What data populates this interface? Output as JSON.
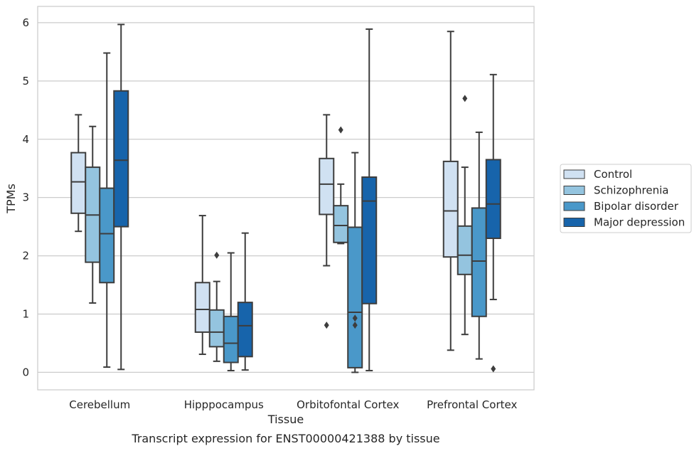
{
  "chart_data": {
    "type": "box",
    "title": "",
    "caption": "Transcript expression for ENST00000421388 by tissue",
    "xlabel": "Tissue",
    "ylabel": "TPMs",
    "ylim": [
      -0.3,
      6.28
    ],
    "yticks": [
      0,
      1,
      2,
      3,
      4,
      5,
      6
    ],
    "grid": "horizontal",
    "legend_position": "right",
    "categories": [
      "Cerebellum",
      "Hipppocampus",
      "Orbitofontal Cortex",
      "Prefrontal Cortex"
    ],
    "series": [
      {
        "name": "Control",
        "color": "#d0e1f2",
        "boxes": [
          {
            "whisker_low": 2.42,
            "q1": 2.73,
            "median": 3.27,
            "q3": 3.77,
            "whisker_high": 4.42,
            "outliers": []
          },
          {
            "whisker_low": 0.31,
            "q1": 0.69,
            "median": 1.08,
            "q3": 1.54,
            "whisker_high": 2.69,
            "outliers": []
          },
          {
            "whisker_low": 1.83,
            "q1": 2.71,
            "median": 3.23,
            "q3": 3.67,
            "whisker_high": 4.42,
            "outliers": [
              0.81
            ]
          },
          {
            "whisker_low": 0.38,
            "q1": 1.98,
            "median": 2.77,
            "q3": 3.62,
            "whisker_high": 5.85,
            "outliers": []
          }
        ]
      },
      {
        "name": "Schizophrenia",
        "color": "#94c4df",
        "boxes": [
          {
            "whisker_low": 1.19,
            "q1": 1.89,
            "median": 2.7,
            "q3": 3.52,
            "whisker_high": 4.22,
            "outliers": []
          },
          {
            "whisker_low": 0.19,
            "q1": 0.44,
            "median": 0.69,
            "q3": 1.07,
            "whisker_high": 1.56,
            "outliers": [
              2.01
            ]
          },
          {
            "whisker_low": 2.21,
            "q1": 2.23,
            "median": 2.52,
            "q3": 2.86,
            "whisker_high": 3.23,
            "outliers": [
              4.16
            ]
          },
          {
            "whisker_low": 0.65,
            "q1": 1.68,
            "median": 2.01,
            "q3": 2.51,
            "whisker_high": 3.52,
            "outliers": [
              4.7
            ]
          }
        ]
      },
      {
        "name": "Bipolar disorder",
        "color": "#4a98c9",
        "boxes": [
          {
            "whisker_low": 0.09,
            "q1": 1.54,
            "median": 2.38,
            "q3": 3.16,
            "whisker_high": 5.48,
            "outliers": []
          },
          {
            "whisker_low": 0.03,
            "q1": 0.17,
            "median": 0.5,
            "q3": 0.96,
            "whisker_high": 2.05,
            "outliers": []
          },
          {
            "whisker_low": 0.0,
            "q1": 0.08,
            "median": 1.03,
            "q3": 2.49,
            "whisker_high": 3.77,
            "outliers": [
              0.93,
              0.81
            ]
          },
          {
            "whisker_low": 0.23,
            "q1": 0.96,
            "median": 1.91,
            "q3": 2.82,
            "whisker_high": 4.12,
            "outliers": []
          }
        ]
      },
      {
        "name": "Major depression",
        "color": "#1764ab",
        "boxes": [
          {
            "whisker_low": 0.05,
            "q1": 2.5,
            "median": 3.64,
            "q3": 4.83,
            "whisker_high": 5.97,
            "outliers": []
          },
          {
            "whisker_low": 0.04,
            "q1": 0.27,
            "median": 0.8,
            "q3": 1.2,
            "whisker_high": 2.39,
            "outliers": []
          },
          {
            "whisker_low": 0.03,
            "q1": 1.18,
            "median": 2.94,
            "q3": 3.35,
            "whisker_high": 5.89,
            "outliers": []
          },
          {
            "whisker_low": 1.25,
            "q1": 2.3,
            "median": 2.89,
            "q3": 3.65,
            "whisker_high": 5.11,
            "outliers": [
              0.06
            ]
          }
        ]
      }
    ]
  }
}
